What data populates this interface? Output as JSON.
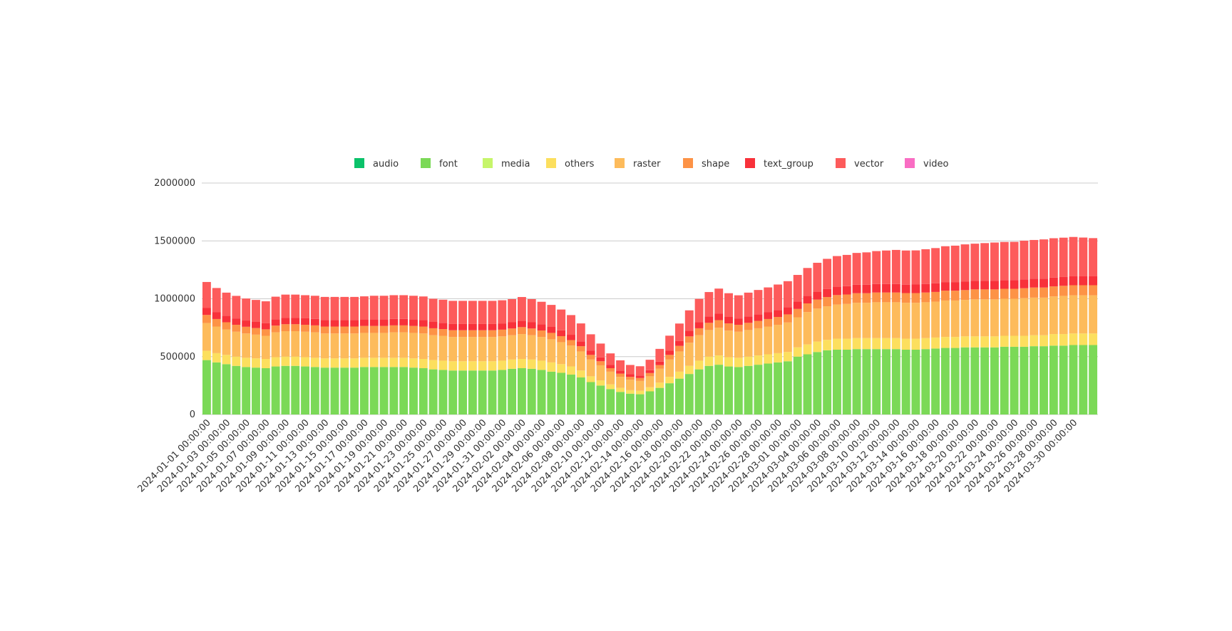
{
  "chart_data": {
    "type": "bar",
    "stacked": true,
    "title": "",
    "xlabel": "",
    "ylabel": "",
    "ylim": [
      0,
      2000000
    ],
    "yticks": [
      0,
      500000,
      1000000,
      1500000,
      2000000
    ],
    "grid": true,
    "legend_position": "top",
    "x_start": "2024-01-01",
    "x_tick_labels": [
      "2024-01-01 00:00:00",
      "2024-01-03 00:00:00",
      "2024-01-05 00:00:00",
      "2024-01-07 00:00:00",
      "2024-01-09 00:00:00",
      "2024-01-11 00:00:00",
      "2024-01-13 00:00:00",
      "2024-01-15 00:00:00",
      "2024-01-17 00:00:00",
      "2024-01-19 00:00:00",
      "2024-01-21 00:00:00",
      "2024-01-23 00:00:00",
      "2024-01-25 00:00:00",
      "2024-01-27 00:00:00",
      "2024-01-29 00:00:00",
      "2024-01-31 00:00:00",
      "2024-02-02 00:00:00",
      "2024-02-04 00:00:00",
      "2024-02-06 00:00:00",
      "2024-02-08 00:00:00",
      "2024-02-10 00:00:00",
      "2024-02-12 00:00:00",
      "2024-02-14 00:00:00",
      "2024-02-16 00:00:00",
      "2024-02-18 00:00:00",
      "2024-02-20 00:00:00",
      "2024-02-22 00:00:00",
      "2024-02-24 00:00:00",
      "2024-02-26 00:00:00",
      "2024-02-28 00:00:00",
      "2024-03-01 00:00:00",
      "2024-03-04 00:00:00",
      "2024-03-06 00:00:00",
      "2024-03-08 00:00:00",
      "2024-03-10 00:00:00",
      "2024-03-12 00:00:00",
      "2024-03-14 00:00:00",
      "2024-03-16 00:00:00",
      "2024-03-18 00:00:00",
      "2024-03-20 00:00:00",
      "2024-03-22 00:00:00",
      "2024-03-24 00:00:00",
      "2024-03-26 00:00:00",
      "2024-03-28 00:00:00",
      "2024-03-30 00:00:00"
    ],
    "series": [
      {
        "name": "audio",
        "color": "#0ac26a",
        "values": [
          0,
          0,
          0,
          0,
          0,
          0,
          0,
          0,
          0,
          0,
          0,
          0,
          0,
          0,
          0,
          0,
          0,
          0,
          0,
          0,
          0,
          0,
          0,
          0,
          0,
          0,
          0,
          0,
          0,
          0,
          0,
          0,
          0,
          0,
          0,
          0,
          0,
          0,
          0,
          0,
          0,
          0,
          0,
          0,
          0,
          0,
          0,
          0,
          0,
          0,
          0,
          0,
          0,
          0,
          0,
          0,
          0,
          0,
          0,
          0,
          0,
          0,
          0,
          0,
          0,
          0,
          0,
          0,
          0,
          0,
          0,
          0,
          0,
          0,
          0,
          0,
          0,
          0,
          0,
          0,
          0,
          0,
          0,
          0,
          0,
          0,
          0,
          0,
          0,
          0,
          0
        ]
      },
      {
        "name": "font",
        "color": "#7bd957",
        "values": [
          470000,
          450000,
          435000,
          420000,
          410000,
          405000,
          400000,
          415000,
          420000,
          420000,
          415000,
          410000,
          405000,
          405000,
          405000,
          405000,
          410000,
          410000,
          410000,
          410000,
          410000,
          405000,
          400000,
          390000,
          385000,
          380000,
          380000,
          380000,
          380000,
          380000,
          385000,
          395000,
          400000,
          395000,
          385000,
          370000,
          360000,
          345000,
          320000,
          280000,
          250000,
          220000,
          195000,
          180000,
          175000,
          200000,
          230000,
          270000,
          310000,
          350000,
          390000,
          420000,
          430000,
          415000,
          410000,
          420000,
          430000,
          440000,
          450000,
          460000,
          500000,
          520000,
          540000,
          555000,
          560000,
          560000,
          565000,
          565000,
          565000,
          565000,
          565000,
          560000,
          560000,
          565000,
          570000,
          575000,
          575000,
          580000,
          580000,
          580000,
          580000,
          585000,
          585000,
          585000,
          590000,
          590000,
          595000,
          595000,
          600000,
          600000,
          600000
        ]
      },
      {
        "name": "media",
        "color": "#c6f56a",
        "values": [
          0,
          0,
          0,
          0,
          0,
          0,
          0,
          0,
          0,
          0,
          0,
          0,
          0,
          0,
          0,
          0,
          0,
          0,
          0,
          0,
          0,
          0,
          0,
          0,
          0,
          0,
          0,
          0,
          0,
          0,
          0,
          0,
          0,
          0,
          0,
          0,
          0,
          0,
          0,
          0,
          0,
          0,
          0,
          0,
          0,
          0,
          0,
          0,
          0,
          0,
          0,
          0,
          0,
          0,
          0,
          0,
          0,
          0,
          0,
          0,
          0,
          0,
          0,
          0,
          0,
          0,
          0,
          0,
          0,
          0,
          0,
          0,
          0,
          0,
          0,
          0,
          0,
          0,
          0,
          0,
          0,
          0,
          0,
          0,
          0,
          0,
          0,
          0,
          0,
          0,
          0
        ]
      },
      {
        "name": "others",
        "color": "#fcdf5e",
        "values": [
          80000,
          80000,
          80000,
          80000,
          80000,
          80000,
          80000,
          80000,
          80000,
          80000,
          80000,
          80000,
          80000,
          80000,
          80000,
          80000,
          80000,
          80000,
          80000,
          80000,
          80000,
          80000,
          80000,
          80000,
          80000,
          80000,
          80000,
          80000,
          80000,
          80000,
          80000,
          80000,
          80000,
          80000,
          80000,
          80000,
          75000,
          70000,
          60000,
          50000,
          45000,
          40000,
          35000,
          30000,
          30000,
          35000,
          45000,
          55000,
          60000,
          70000,
          75000,
          80000,
          80000,
          80000,
          80000,
          80000,
          80000,
          80000,
          80000,
          80000,
          80000,
          85000,
          90000,
          90000,
          95000,
          95000,
          95000,
          95000,
          95000,
          95000,
          95000,
          95000,
          95000,
          95000,
          95000,
          95000,
          95000,
          95000,
          95000,
          95000,
          95000,
          95000,
          95000,
          95000,
          95000,
          95000,
          100000,
          100000,
          100000,
          100000,
          100000
        ]
      },
      {
        "name": "raster",
        "color": "#fdbb5b",
        "values": [
          240000,
          230000,
          220000,
          215000,
          210000,
          205000,
          200000,
          215000,
          220000,
          220000,
          220000,
          220000,
          215000,
          215000,
          215000,
          215000,
          215000,
          215000,
          215000,
          220000,
          220000,
          220000,
          220000,
          215000,
          215000,
          210000,
          210000,
          210000,
          210000,
          210000,
          210000,
          210000,
          215000,
          210000,
          205000,
          200000,
          190000,
          180000,
          165000,
          145000,
          130000,
          110000,
          95000,
          90000,
          85000,
          95000,
          120000,
          150000,
          175000,
          200000,
          220000,
          230000,
          240000,
          230000,
          225000,
          230000,
          235000,
          240000,
          245000,
          255000,
          260000,
          280000,
          285000,
          290000,
          295000,
          300000,
          305000,
          305000,
          310000,
          310000,
          310000,
          310000,
          310000,
          310000,
          310000,
          315000,
          315000,
          315000,
          320000,
          320000,
          320000,
          320000,
          320000,
          325000,
          325000,
          325000,
          325000,
          330000,
          330000,
          330000,
          330000
        ]
      },
      {
        "name": "shape",
        "color": "#fd9346",
        "values": [
          70000,
          65000,
          62000,
          60000,
          58000,
          57000,
          56000,
          58000,
          60000,
          60000,
          60000,
          60000,
          60000,
          60000,
          60000,
          60000,
          60000,
          60000,
          60000,
          60000,
          60000,
          60000,
          60000,
          60000,
          58000,
          58000,
          58000,
          58000,
          58000,
          58000,
          58000,
          58000,
          60000,
          58000,
          56000,
          55000,
          52000,
          48000,
          45000,
          40000,
          35000,
          30000,
          28000,
          25000,
          25000,
          28000,
          32000,
          40000,
          48000,
          55000,
          60000,
          62000,
          65000,
          62000,
          60000,
          62000,
          64000,
          65000,
          68000,
          70000,
          72000,
          75000,
          78000,
          80000,
          82000,
          82000,
          83000,
          83000,
          84000,
          84000,
          84000,
          84000,
          84000,
          84000,
          84000,
          85000,
          85000,
          85000,
          86000,
          86000,
          86000,
          86000,
          86000,
          86000,
          87000,
          87000,
          87000,
          87000,
          87000,
          87000,
          87000
        ]
      },
      {
        "name": "text_group",
        "color": "#f8313a",
        "values": [
          60000,
          58000,
          56000,
          55000,
          54000,
          53000,
          52000,
          55000,
          56000,
          56000,
          56000,
          56000,
          56000,
          56000,
          56000,
          56000,
          56000,
          56000,
          56000,
          56000,
          56000,
          56000,
          55000,
          55000,
          54000,
          54000,
          54000,
          54000,
          54000,
          54000,
          54000,
          54000,
          55000,
          54000,
          53000,
          52000,
          50000,
          46000,
          42000,
          38000,
          33000,
          28000,
          25000,
          23000,
          22000,
          25000,
          30000,
          36000,
          43000,
          50000,
          54000,
          56000,
          58000,
          56000,
          55000,
          56000,
          57000,
          58000,
          60000,
          62000,
          64000,
          66000,
          68000,
          70000,
          72000,
          72000,
          73000,
          73000,
          73000,
          73000,
          73000,
          73000,
          74000,
          74000,
          74000,
          74000,
          74000,
          75000,
          75000,
          75000,
          75000,
          75000,
          76000,
          76000,
          76000,
          76000,
          76000,
          76000,
          77000,
          77000,
          77000
        ]
      },
      {
        "name": "vector",
        "color": "#fd5b5b",
        "values": [
          225000,
          210000,
          200000,
          195000,
          190000,
          190000,
          190000,
          195000,
          200000,
          200000,
          200000,
          200000,
          200000,
          200000,
          200000,
          200000,
          200000,
          205000,
          205000,
          205000,
          205000,
          205000,
          205000,
          200000,
          200000,
          200000,
          200000,
          200000,
          200000,
          200000,
          200000,
          200000,
          205000,
          200000,
          195000,
          190000,
          180000,
          170000,
          155000,
          140000,
          120000,
          100000,
          90000,
          80000,
          80000,
          90000,
          110000,
          130000,
          150000,
          175000,
          200000,
          210000,
          215000,
          205000,
          200000,
          205000,
          210000,
          215000,
          220000,
          225000,
          230000,
          240000,
          250000,
          260000,
          265000,
          270000,
          275000,
          280000,
          285000,
          290000,
          295000,
          295000,
          295000,
          300000,
          305000,
          310000,
          315000,
          320000,
          320000,
          325000,
          330000,
          330000,
          330000,
          335000,
          335000,
          340000,
          340000,
          340000,
          340000,
          335000,
          330000
        ]
      },
      {
        "name": "video",
        "color": "#f96dc3",
        "values": [
          0,
          0,
          0,
          0,
          0,
          0,
          0,
          0,
          0,
          0,
          0,
          0,
          0,
          0,
          0,
          0,
          0,
          0,
          0,
          0,
          0,
          0,
          0,
          0,
          0,
          0,
          0,
          0,
          0,
          0,
          0,
          0,
          0,
          0,
          0,
          0,
          0,
          0,
          0,
          0,
          0,
          0,
          0,
          0,
          0,
          0,
          0,
          0,
          0,
          0,
          0,
          0,
          0,
          0,
          0,
          0,
          0,
          0,
          0,
          0,
          0,
          0,
          0,
          0,
          0,
          0,
          0,
          0,
          0,
          0,
          0,
          0,
          0,
          0,
          0,
          0,
          0,
          0,
          0,
          0,
          0,
          0,
          0,
          0,
          0,
          0,
          0,
          0,
          0,
          0,
          0
        ]
      }
    ]
  }
}
